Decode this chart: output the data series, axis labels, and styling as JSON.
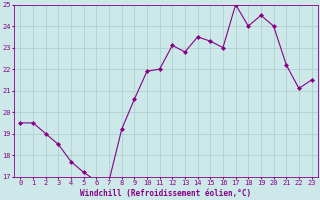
{
  "x": [
    0,
    1,
    2,
    3,
    4,
    5,
    6,
    7,
    8,
    9,
    10,
    11,
    12,
    13,
    14,
    15,
    16,
    17,
    18,
    19,
    20,
    21,
    22,
    23
  ],
  "y": [
    19.5,
    19.5,
    19.0,
    18.5,
    17.7,
    17.2,
    16.8,
    16.8,
    19.2,
    20.6,
    21.9,
    22.0,
    23.1,
    22.8,
    23.5,
    23.3,
    23.0,
    25.0,
    24.0,
    24.5,
    24.0,
    22.2,
    21.1,
    21.5
  ],
  "line_color": "#880088",
  "marker": "D",
  "marker_size": 2.0,
  "bg_color": "#cce8e8",
  "grid_color": "#aacccc",
  "xlabel": "Windchill (Refroidissement éolien,°C)",
  "xlabel_color": "#880088",
  "tick_color": "#880088",
  "ylim": [
    17,
    25
  ],
  "xlim": [
    -0.5,
    23.5
  ],
  "yticks": [
    17,
    18,
    19,
    20,
    21,
    22,
    23,
    24,
    25
  ],
  "xticks": [
    0,
    1,
    2,
    3,
    4,
    5,
    6,
    7,
    8,
    9,
    10,
    11,
    12,
    13,
    14,
    15,
    16,
    17,
    18,
    19,
    20,
    21,
    22,
    23
  ],
  "tick_fontsize": 5.0,
  "xlabel_fontsize": 5.5,
  "linewidth": 0.8
}
